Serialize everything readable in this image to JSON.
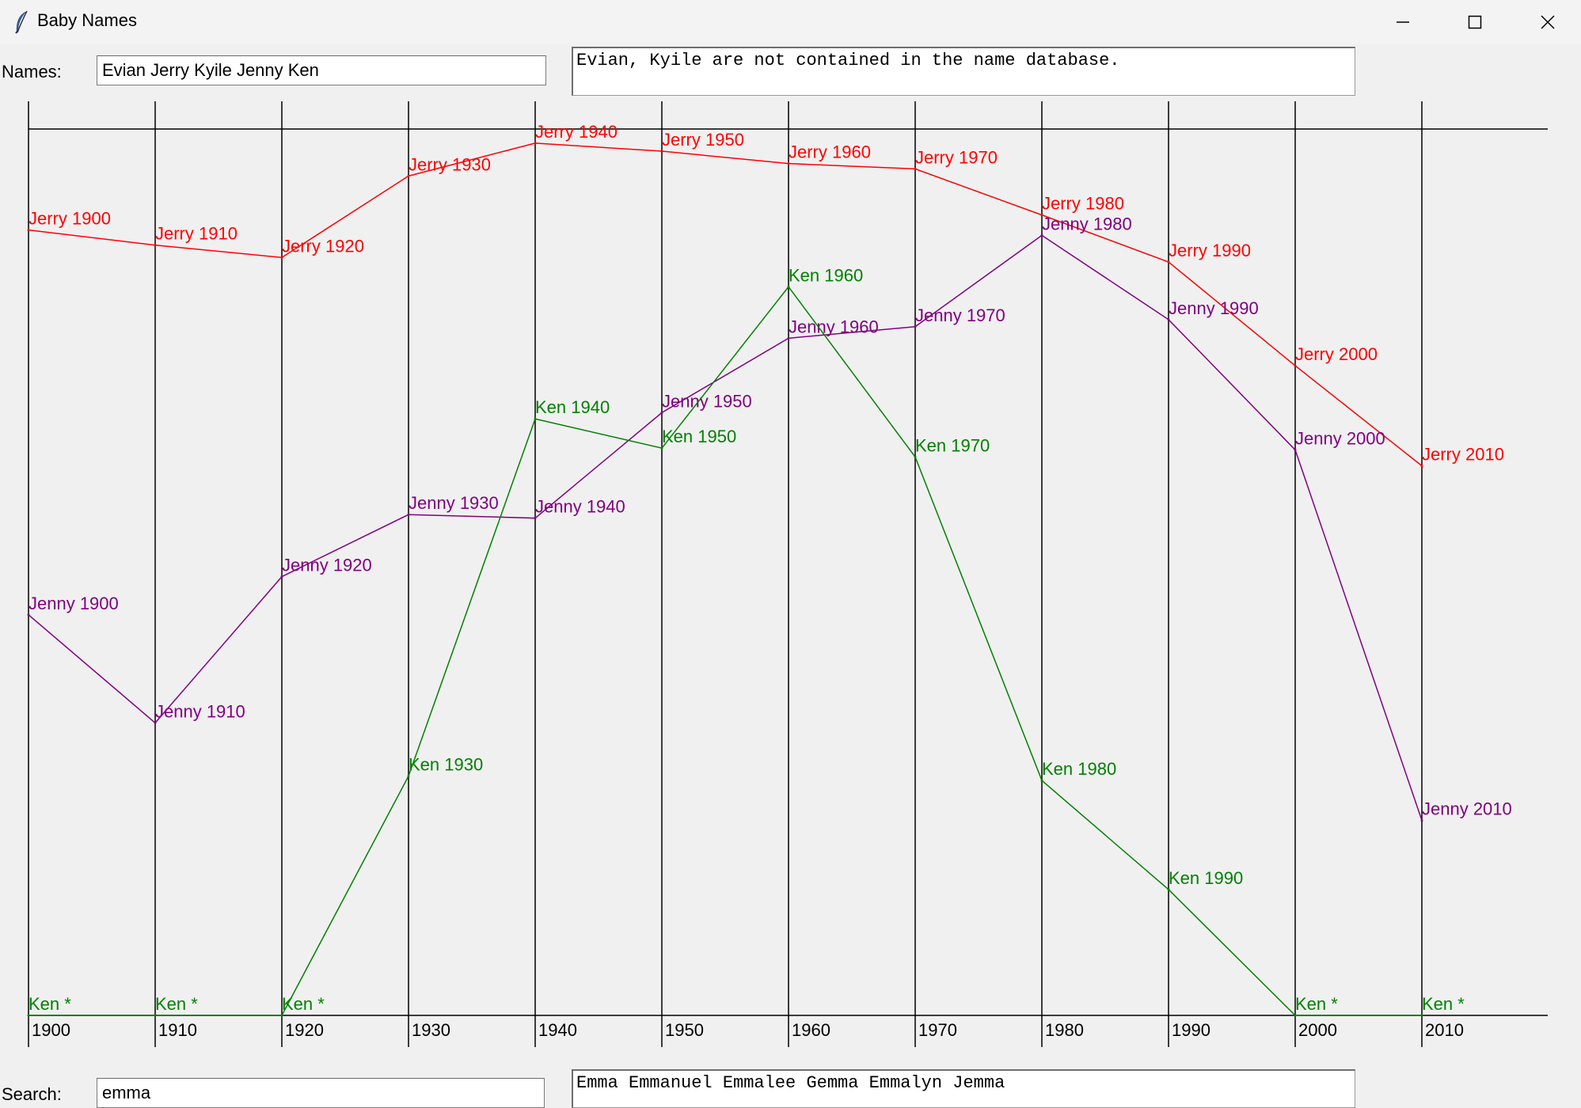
{
  "window": {
    "title": "Baby Names",
    "icon": "feather-icon",
    "controls": [
      "minimize-icon",
      "maximize-icon",
      "close-icon"
    ]
  },
  "names_row": {
    "label": "Names:",
    "value": "Evian Jerry Kyile Jenny Ken",
    "message": "Evian, Kyile are not contained in the name database."
  },
  "search_row": {
    "label": "Search:",
    "value": "emma",
    "results": "Emma Emmanuel Emmalee Gemma Emmalyn Jemma"
  },
  "colors": {
    "Jerry": "#ff0000",
    "Jenny": "#800080",
    "Ken": "#008000",
    "grid": "#000000",
    "background": "#f0f0f0"
  },
  "chart_data": {
    "type": "line",
    "x": [
      1900,
      1910,
      1920,
      1930,
      1940,
      1950,
      1960,
      1970,
      1980,
      1990,
      2000,
      2010
    ],
    "x_tick_labels": [
      "1900",
      "1910",
      "1920",
      "1930",
      "1940",
      "1950",
      "1960",
      "1970",
      "1980",
      "1990",
      "2000",
      "2010"
    ],
    "y_meaning": "popularity rank, 1 at top; null = not ranked",
    "ylim": [
      1000,
      1
    ],
    "grid": "vertical lines at each decade",
    "series": [
      {
        "name": "Jerry",
        "ranks": [
          114,
          131,
          145,
          53,
          16,
          25,
          39,
          45,
          97,
          150,
          267,
          380
        ],
        "labels": [
          "Jerry 1900",
          "Jerry 1910",
          "Jerry 1920",
          "Jerry 1930",
          "Jerry 1940",
          "Jerry 1950",
          "Jerry 1960",
          "Jerry 1970",
          "Jerry 1980",
          "Jerry 1990",
          "Jerry 2000",
          "Jerry 2010"
        ]
      },
      {
        "name": "Jenny",
        "ranks": [
          548,
          670,
          505,
          435,
          439,
          320,
          236,
          223,
          120,
          215,
          362,
          780
        ],
        "labels": [
          "Jenny 1900",
          "Jenny 1910",
          "Jenny 1920",
          "Jenny 1930",
          "Jenny 1940",
          "Jenny 1950",
          "Jenny 1960",
          "Jenny 1970",
          "Jenny 1980",
          "Jenny 1990",
          "Jenny 2000",
          "Jenny 2010"
        ]
      },
      {
        "name": "Ken",
        "ranks": [
          null,
          null,
          null,
          730,
          327,
          360,
          178,
          370,
          735,
          858,
          null,
          null
        ],
        "labels": [
          "Ken *",
          "Ken *",
          "Ken *",
          "Ken 1930",
          "Ken 1940",
          "Ken 1950",
          "Ken 1960",
          "Ken 1970",
          "Ken 1980",
          "Ken 1990",
          "Ken *",
          "Ken *"
        ]
      }
    ]
  }
}
